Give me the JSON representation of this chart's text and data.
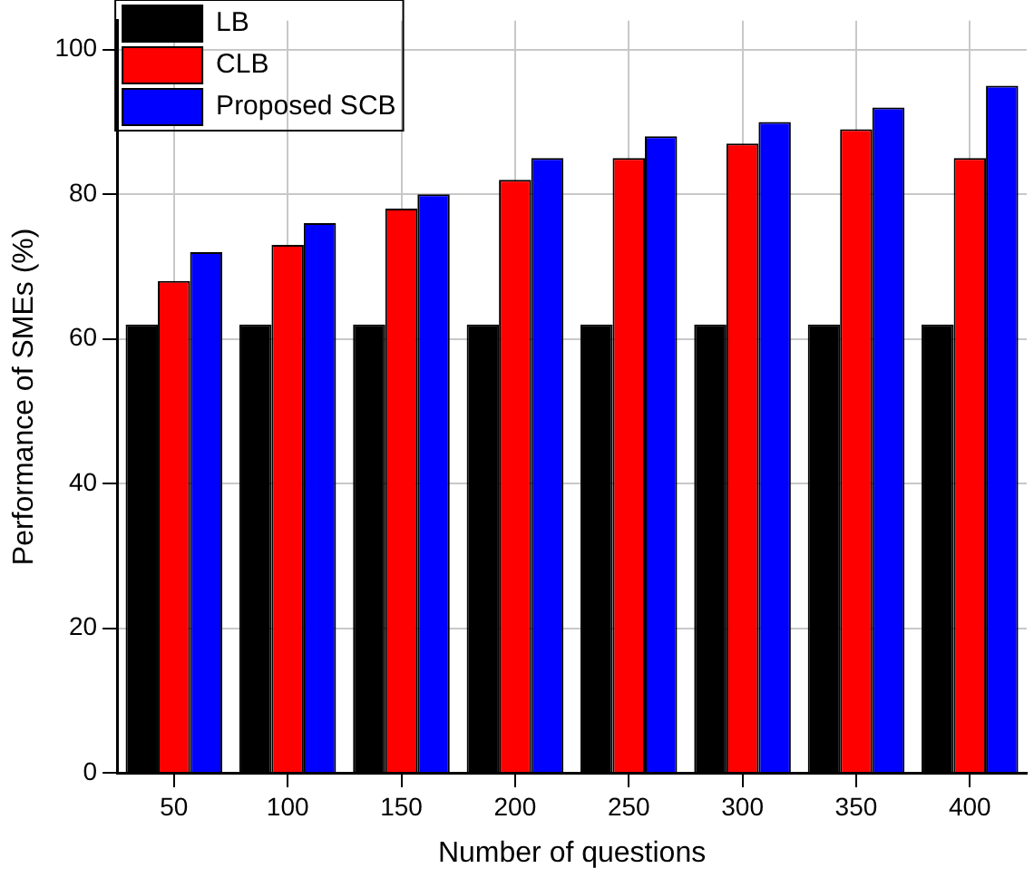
{
  "chart_data": {
    "type": "bar",
    "xlabel": "Number of questions",
    "ylabel": "Performance of SMEs (%)",
    "categories": [
      "50",
      "100",
      "150",
      "200",
      "250",
      "300",
      "350",
      "400"
    ],
    "series": [
      {
        "name": "LB",
        "color": "#000000",
        "values": [
          62,
          62,
          62,
          62,
          62,
          62,
          62,
          62
        ]
      },
      {
        "name": "CLB",
        "color": "#ff0000",
        "values": [
          68,
          73,
          78,
          82,
          85,
          87,
          89,
          85
        ]
      },
      {
        "name": "Proposed SCB",
        "color": "#0000ff",
        "values": [
          72,
          76,
          80,
          85,
          88,
          90,
          92,
          95
        ]
      }
    ],
    "ylim": [
      0,
      104
    ],
    "yticks": [
      0,
      20,
      40,
      60,
      80,
      100
    ],
    "grid": true,
    "legend": "top left"
  }
}
